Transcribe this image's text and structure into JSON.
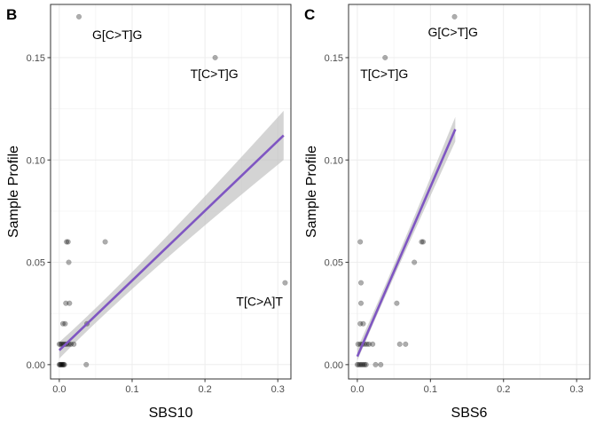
{
  "chart_data": [
    {
      "type": "scatter",
      "panel": "B",
      "xlabel": "SBS10",
      "ylabel": "Sample Profile",
      "xlim": [
        -0.012,
        0.318
      ],
      "ylim": [
        -0.007,
        0.176
      ],
      "x_ticks": [
        0.0,
        0.1,
        0.2,
        0.3
      ],
      "x_tick_labels": [
        "0.0",
        "0.1",
        "0.2",
        "0.3"
      ],
      "y_ticks": [
        0.0,
        0.05,
        0.1,
        0.15
      ],
      "y_tick_labels": [
        "0.00",
        "0.05",
        "0.10",
        "0.15"
      ],
      "grid": true,
      "points": [
        [
          0.0,
          0.0
        ],
        [
          0.001,
          0.0
        ],
        [
          0.002,
          0.0
        ],
        [
          0.003,
          0.0
        ],
        [
          0.004,
          0.0
        ],
        [
          0.005,
          0.0
        ],
        [
          0.006,
          0.0
        ],
        [
          0.007,
          0.0
        ],
        [
          0.0,
          0.01
        ],
        [
          0.002,
          0.01
        ],
        [
          0.004,
          0.01
        ],
        [
          0.006,
          0.01
        ],
        [
          0.008,
          0.01
        ],
        [
          0.01,
          0.01
        ],
        [
          0.013,
          0.01
        ],
        [
          0.016,
          0.01
        ],
        [
          0.005,
          0.02
        ],
        [
          0.008,
          0.02
        ],
        [
          0.009,
          0.03
        ],
        [
          0.014,
          0.03
        ],
        [
          0.013,
          0.05
        ],
        [
          0.01,
          0.06
        ],
        [
          0.012,
          0.06
        ],
        [
          0.02,
          0.01
        ],
        [
          0.037,
          0.0
        ],
        [
          0.038,
          0.02
        ],
        [
          0.063,
          0.06
        ],
        [
          0.027,
          0.17
        ],
        [
          0.214,
          0.15
        ],
        [
          0.31,
          0.04
        ]
      ],
      "annotations": [
        {
          "text": "G[C>T]G",
          "x": 0.027,
          "y": 0.17
        },
        {
          "text": "T[C>T]G",
          "x": 0.214,
          "y": 0.15
        },
        {
          "text": "T[C>A]T",
          "x": 0.31,
          "y": 0.04
        }
      ],
      "fit": {
        "x": [
          0.0,
          0.308
        ],
        "y": [
          0.007,
          0.112
        ],
        "ci_low": [
          0.003,
          0.1
        ],
        "ci_high": [
          0.011,
          0.124
        ]
      },
      "point_color": "#000000",
      "fit_color": "#7f56c2",
      "ci_color": "#bdbdbd"
    },
    {
      "type": "scatter",
      "panel": "C",
      "xlabel": "SBS6",
      "ylabel": "Sample Profile",
      "xlim": [
        -0.012,
        0.318
      ],
      "ylim": [
        -0.007,
        0.176
      ],
      "x_ticks": [
        0.0,
        0.1,
        0.2,
        0.3
      ],
      "x_tick_labels": [
        "0.0",
        "0.1",
        "0.2",
        "0.3"
      ],
      "y_ticks": [
        0.0,
        0.05,
        0.1,
        0.15
      ],
      "y_tick_labels": [
        "0.00",
        "0.05",
        "0.10",
        "0.15"
      ],
      "grid": true,
      "points": [
        [
          0.0,
          0.0
        ],
        [
          0.002,
          0.0
        ],
        [
          0.004,
          0.0
        ],
        [
          0.006,
          0.0
        ],
        [
          0.008,
          0.0
        ],
        [
          0.01,
          0.0
        ],
        [
          0.012,
          0.0
        ],
        [
          0.001,
          0.01
        ],
        [
          0.004,
          0.01
        ],
        [
          0.007,
          0.01
        ],
        [
          0.01,
          0.01
        ],
        [
          0.013,
          0.01
        ],
        [
          0.004,
          0.02
        ],
        [
          0.008,
          0.02
        ],
        [
          0.005,
          0.03
        ],
        [
          0.005,
          0.04
        ],
        [
          0.004,
          0.06
        ],
        [
          0.016,
          0.01
        ],
        [
          0.021,
          0.01
        ],
        [
          0.025,
          0.0
        ],
        [
          0.032,
          0.0
        ],
        [
          0.054,
          0.03
        ],
        [
          0.058,
          0.01
        ],
        [
          0.066,
          0.01
        ],
        [
          0.078,
          0.05
        ],
        [
          0.088,
          0.06
        ],
        [
          0.09,
          0.06
        ],
        [
          0.133,
          0.17
        ],
        [
          0.038,
          0.15
        ]
      ],
      "annotations": [
        {
          "text": "G[C>T]G",
          "x": 0.133,
          "y": 0.17
        },
        {
          "text": "T[C>T]G",
          "x": 0.038,
          "y": 0.15
        }
      ],
      "fit": {
        "x": [
          0.0,
          0.134
        ],
        "y": [
          0.004,
          0.115
        ],
        "ci_low": [
          0.002,
          0.109
        ],
        "ci_high": [
          0.008,
          0.121
        ]
      },
      "point_color": "#000000",
      "fit_color": "#7f56c2",
      "ci_color": "#bdbdbd"
    }
  ]
}
